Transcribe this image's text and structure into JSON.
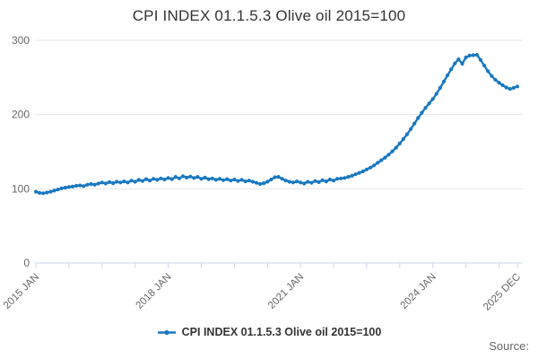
{
  "title": "CPI INDEX 01.1.5.3 Olive oil 2015=100",
  "source_label": "Source:",
  "legend": {
    "series_label": "CPI INDEX 01.1.5.3 Olive oil 2015=100"
  },
  "colors": {
    "series": "#1878c0",
    "grid": "#e6e6e6",
    "axis": "#ccd6eb",
    "tick_label": "#666666",
    "title_text": "#333333",
    "legend_text": "#333333",
    "source_text": "#666666"
  },
  "chart_data": {
    "type": "line",
    "title": "CPI INDEX 01.1.5.3 Olive oil 2015=100",
    "frequency": "monthly",
    "x_start": "2015 JAN",
    "x_end": "2025 DEC",
    "grid": "horizontal",
    "legend_position": "bottom",
    "ylim": [
      0,
      300
    ],
    "yticks": [
      0,
      100,
      200,
      300
    ],
    "xtick_labels": [
      {
        "label": "2015 JAN",
        "month": 0
      },
      {
        "label": "2018 JAN",
        "month": 36
      },
      {
        "label": "2021 JAN",
        "month": 72
      },
      {
        "label": "2024 JAN",
        "month": 108
      },
      {
        "label": "2025 DEC",
        "month": 131
      }
    ],
    "series": [
      {
        "name": "CPI INDEX 01.1.5.3 Olive oil 2015=100",
        "marker": "circle",
        "values": [
          96,
          94.5,
          94,
          95,
          96,
          97.5,
          99,
          100.5,
          101.5,
          102.5,
          103,
          104,
          104.5,
          103.5,
          105.5,
          106.5,
          105.5,
          107,
          108.5,
          107,
          109,
          107.5,
          109.5,
          108.5,
          110,
          108.5,
          111,
          109.5,
          112,
          110.5,
          113,
          111,
          113.5,
          112,
          114,
          112.5,
          114.5,
          113,
          116,
          114,
          117,
          115,
          116.5,
          114.5,
          116,
          113.5,
          115,
          113,
          114,
          112,
          113.5,
          111.5,
          113,
          111,
          112.5,
          110.5,
          112,
          110,
          111,
          109.5,
          108,
          106.5,
          107.5,
          109.5,
          112.5,
          115.5,
          116,
          113.5,
          111,
          109.5,
          108.5,
          110,
          108.5,
          107,
          109.5,
          108,
          110.5,
          109,
          111.5,
          110,
          112.5,
          111,
          113.5,
          114,
          114.5,
          116,
          117.5,
          119.5,
          121.5,
          123.5,
          126,
          128.5,
          131.5,
          135,
          138.5,
          142,
          146,
          150.5,
          155.5,
          161,
          167,
          173.5,
          180.5,
          188,
          195.5,
          202.5,
          209,
          215,
          221,
          228,
          236,
          244.5,
          253,
          261,
          269,
          274.5,
          268.5,
          277,
          279.5,
          280,
          280.5,
          273.5,
          266,
          258.5,
          252,
          247,
          243,
          239.5,
          236.5,
          234.5,
          236,
          238
        ]
      }
    ]
  }
}
